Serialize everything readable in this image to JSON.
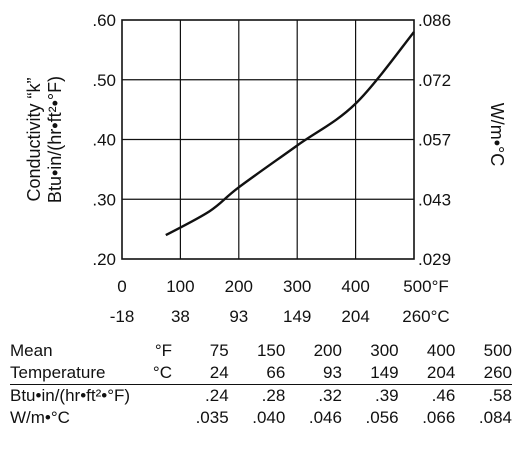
{
  "chart_data": {
    "type": "line",
    "title": "",
    "grid": true,
    "xlabel": "",
    "ylabel": [
      "Conductivity “k”",
      "Btu•in/(hr•ft²•°F)"
    ],
    "ylabel_right": "W/m•°C",
    "xlim": [
      0,
      500
    ],
    "ylim": [
      0.2,
      0.6
    ],
    "x_ticks_F": [
      "0",
      "100",
      "200",
      "300",
      "400",
      "500°F"
    ],
    "x_ticks_C": [
      "-18",
      "38",
      "93",
      "149",
      "204",
      "260°C"
    ],
    "y_ticks_left": [
      ".20",
      ".30",
      ".40",
      ".50",
      ".60"
    ],
    "y_ticks_right": [
      ".029",
      ".043",
      ".057",
      ".072",
      ".086"
    ],
    "series": [
      {
        "x": [
          75,
          150,
          200,
          300,
          400,
          500
        ],
        "y": [
          0.24,
          0.28,
          0.32,
          0.39,
          0.46,
          0.58
        ]
      }
    ]
  },
  "table": {
    "row_mean": {
      "label": "Mean",
      "unit": "°F",
      "values": [
        "75",
        "150",
        "200",
        "300",
        "400",
        "500"
      ]
    },
    "row_temp": {
      "label": "Temperature",
      "unit": "°C",
      "values": [
        "24",
        "66",
        "93",
        "149",
        "204",
        "260"
      ]
    },
    "row_btu": {
      "label": "Btu•in/(hr•ft²•°F)",
      "values": [
        ".24",
        ".28",
        ".32",
        ".39",
        ".46",
        ".58"
      ]
    },
    "row_w": {
      "label": "W/m•°C",
      "values": [
        ".035",
        ".040",
        ".046",
        ".056",
        ".066",
        ".084"
      ]
    }
  }
}
